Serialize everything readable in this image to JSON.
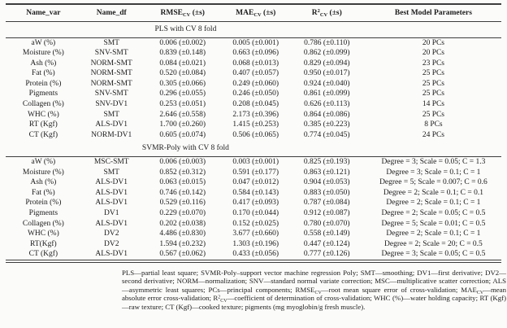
{
  "table": {
    "columns": [
      {
        "base": "Name_var"
      },
      {
        "base": "Name_df"
      },
      {
        "base": "RMSE",
        "sub": "CV",
        "suffix": " (±s)"
      },
      {
        "base": "MAE",
        "sub": "CV",
        "suffix": " (±s)"
      },
      {
        "base": "R",
        "sup": "2",
        "sub": "CV",
        "suffix": " (±s)"
      },
      {
        "base": "Best Model Parameters"
      }
    ],
    "sections": [
      {
        "title": "PLS with CV 8 fold",
        "rows": [
          [
            "aW (%)",
            "SMT",
            "0.006 (±0.002)",
            "0.005 (±0.001)",
            "0.786 (±0.110)",
            "20 PCs"
          ],
          [
            "Moisture (%)",
            "SNV-SMT",
            "0.839 (±0.148)",
            "0.663 (±0.096)",
            "0.862 (±0.099)",
            "20 PCs"
          ],
          [
            "Ash (%)",
            "NORM-SMT",
            "0.084 (±0.021)",
            "0.068 (±0.013)",
            "0.829 (±0.094)",
            "23 PCs"
          ],
          [
            "Fat (%)",
            "NORM-SMT",
            "0.520 (±0.084)",
            "0.407 (±0.057)",
            "0.950 (±0.017)",
            "25 PCs"
          ],
          [
            "Protein (%)",
            "NORM-SMT",
            "0.305 (±0.066)",
            "0.249 (±0.060)",
            "0.924 (±0.040)",
            "25 PCs"
          ],
          [
            "Pigments",
            "SNV-SMT",
            "0.296 (±0.055)",
            "0.246 (±0.050)",
            "0.861 (±0.099)",
            "25 PCs"
          ],
          [
            "Collagen (%)",
            "SNV-DV1",
            "0.253 (±0.051)",
            "0.208 (±0.045)",
            "0.626 (±0.113)",
            "14 PCs"
          ],
          [
            "WHC (%)",
            "SMT",
            "2.646 (±0.558)",
            "2.173 (±0.396)",
            "0.864 (±0.086)",
            "25 PCs"
          ],
          [
            "RT (Kgf)",
            "ALS-DV1",
            "1.700 (±0.260)",
            "1.415 (±0.253)",
            "0.385 (±0.223)",
            "8 PCs"
          ],
          [
            "CT (Kgf)",
            "NORM-DV1",
            "0.605 (±0.074)",
            "0.506 (±0.065)",
            "0.774 (±0.045)",
            "24 PCs"
          ]
        ]
      },
      {
        "title": "SVMR-Poly with CV 8 fold",
        "rows": [
          [
            "aW (%)",
            "MSC-SMT",
            "0.006 (±0.003)",
            "0.003 (±0.001)",
            "0.825 (±0.193)",
            "Degree = 3; Scale = 0.05; C = 1.3"
          ],
          [
            "Moisture (%)",
            "SMT",
            "0.852 (±0.312)",
            "0.591 (±0.177)",
            "0.863 (±0.121)",
            "Degree = 3; Scale = 0.1; C = 1"
          ],
          [
            "Ash (%)",
            "ALS-DV1",
            "0.063 (±0.015)",
            "0.047 (±0.012)",
            "0.904 (±0.053)",
            "Degree = 5; Scale = 0.007; C = 0.6"
          ],
          [
            "Fat (%)",
            "ALS-DV1",
            "0.746 (±0.142)",
            "0.584 (±0.143)",
            "0.883 (±0.050)",
            "Degree = 2; Scale = 0.1; C = 0.1"
          ],
          [
            "Protein (%)",
            "ALS-DV1",
            "0.529 (±0.116)",
            "0.417 (±0.093)",
            "0.787 (±0.084)",
            "Degree = 2; Scale = 0.1; C = 1"
          ],
          [
            "Pigments",
            "DV1",
            "0.229 (±0.070)",
            "0.170 (±0.044)",
            "0.912 (±0.087)",
            "Degree = 2; Scale = 0.05; C = 0.5"
          ],
          [
            "Collagen (%)",
            "ALS-DV1",
            "0.202 (±0.038)",
            "0.152 (±0.025)",
            "0.780 (±0.070)",
            "Degree = 5; Scale = 0.01; C = 0.5"
          ],
          [
            "WHC (%)",
            "DV2",
            "4.486 (±0.830)",
            "3.677 (±0.660)",
            "0.558 (±0.149)",
            "Degree = 2; Scale = 0.1; C = 1"
          ],
          [
            "RT(Kgf)",
            "DV2",
            "1.594 (±0.232)",
            "1.303 (±0.196)",
            "0.447 (±0.124)",
            "Degree = 2; Scale = 20; C = 0.5"
          ],
          [
            "CT (Kgf)",
            "ALS-DV1",
            "0.567 (±0.062)",
            "0.433 (±0.056)",
            "0.777 (±0.126)",
            "Degree = 3; Scale = 0.05; C = 0.5"
          ]
        ]
      }
    ]
  },
  "footnote": {
    "segments": [
      {
        "t": "PLS—partial least square; SVMR-Poly–support vector machine regression Poly; SMT—smoothing; DV1—first derivative; DV2—second derivative; NORM—normalization; SNV—standard normal variate correction; MSC—multiplicative scatter correction; ALS—asymmetric least squares; PCs—principal components; "
      },
      {
        "t": "RMSE"
      },
      {
        "t": "CV",
        "sub": true
      },
      {
        "t": "—root mean square error of cross-validation; "
      },
      {
        "t": "MAE"
      },
      {
        "t": "CV",
        "sub": true
      },
      {
        "t": "—mean absolute error cross-validation; "
      },
      {
        "t": "R"
      },
      {
        "t": "2",
        "sup": true
      },
      {
        "t": "CV",
        "sub": true
      },
      {
        "t": "—coefficient of determination of cross-validation; WHC (%)—water holding capacity; RT (Kgf)—raw texture; CT (Kgf)—cooked texture; pigments (mg myoglobin/g fresh muscle)."
      }
    ]
  }
}
